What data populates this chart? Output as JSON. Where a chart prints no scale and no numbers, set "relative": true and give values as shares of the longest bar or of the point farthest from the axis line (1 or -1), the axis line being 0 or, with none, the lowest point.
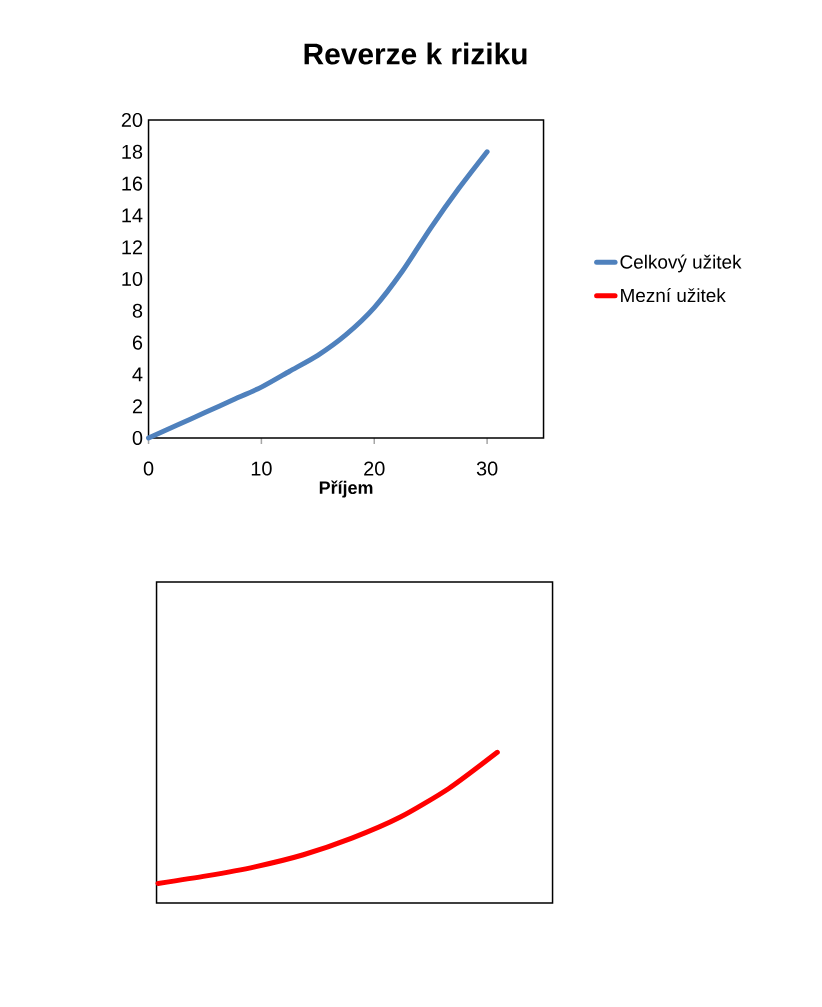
{
  "chart_data": [
    {
      "type": "line",
      "title": "Reverze k riziku",
      "xlabel": "Příjem",
      "x": [
        0,
        2.5,
        5,
        7.5,
        10,
        12.5,
        15,
        17.5,
        20,
        22.5,
        25,
        27.5,
        30
      ],
      "series": [
        {
          "name": "Celkový užitek",
          "color": "#4f81bd",
          "values": [
            0,
            0.8,
            1.6,
            2.4,
            3.2,
            4.2,
            5.2,
            6.5,
            8.2,
            10.5,
            13.2,
            15.7,
            18
          ]
        }
      ],
      "xlim": [
        0,
        35
      ],
      "xticks": [
        0,
        10,
        20,
        30
      ],
      "ylim": [
        0,
        20
      ],
      "yticks": [
        0,
        2,
        4,
        6,
        8,
        10,
        12,
        14,
        16,
        18,
        20
      ],
      "legend": "right"
    },
    {
      "type": "line",
      "relative": true,
      "categories": [
        null,
        null,
        null,
        null,
        null,
        null,
        null,
        null
      ],
      "series": [
        {
          "name": "Mezní užitek",
          "color": "#ff0000",
          "values": [
            0.13,
            0.18,
            0.24,
            0.32,
            0.43,
            0.57,
            0.76,
            1
          ]
        }
      ]
    }
  ]
}
